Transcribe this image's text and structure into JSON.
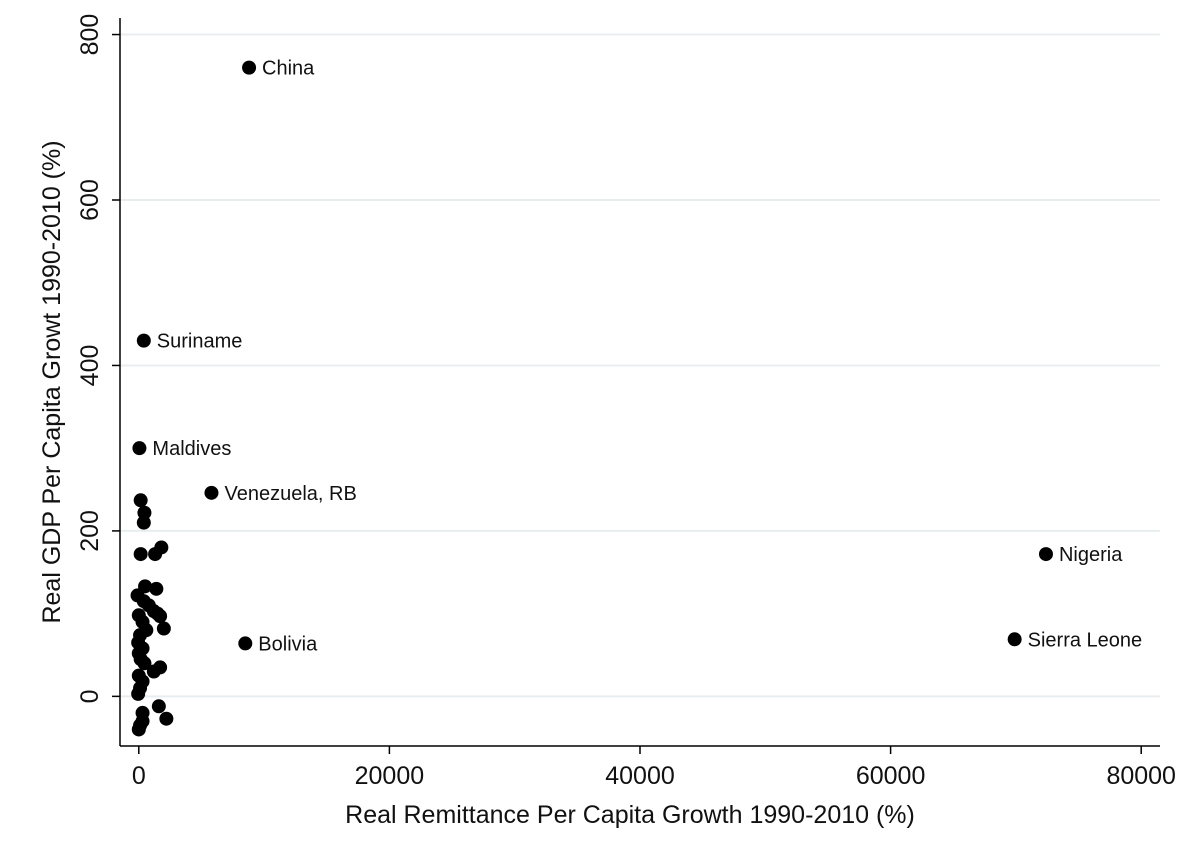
{
  "chart_data": {
    "type": "scatter",
    "title": "",
    "xlabel": "Real Remittance Per Capita Growth 1990-2010 (%)",
    "ylabel": "Real GDP Per Capita Growt 1990-2010 (%)",
    "xlim": [
      -1500,
      81500
    ],
    "ylim": [
      -60,
      820
    ],
    "xticks": [
      0,
      20000,
      40000,
      60000,
      80000
    ],
    "xtick_labels": [
      "0",
      "20000",
      "40000",
      "60000",
      "80000"
    ],
    "yticks": [
      0,
      200,
      400,
      600,
      800
    ],
    "ytick_labels": [
      "0",
      "200",
      "400",
      "600",
      "800"
    ],
    "grid": true,
    "marker_color": "#000000",
    "gridline_color": "#e8eef0",
    "points": [
      {
        "x": 8800,
        "y": 760,
        "label": "China"
      },
      {
        "x": 400,
        "y": 430,
        "label": "Suriname"
      },
      {
        "x": 50,
        "y": 300,
        "label": "Maldives"
      },
      {
        "x": 5800,
        "y": 246,
        "label": "Venezuela, RB"
      },
      {
        "x": 72400,
        "y": 172,
        "label": "Nigeria"
      },
      {
        "x": 8500,
        "y": 64,
        "label": "Bolivia"
      },
      {
        "x": 69900,
        "y": 69,
        "label": "Sierra Leone"
      },
      {
        "x": 150,
        "y": 237
      },
      {
        "x": 450,
        "y": 222
      },
      {
        "x": 400,
        "y": 210
      },
      {
        "x": 1800,
        "y": 180
      },
      {
        "x": 150,
        "y": 172
      },
      {
        "x": 1300,
        "y": 172
      },
      {
        "x": 500,
        "y": 133
      },
      {
        "x": 1400,
        "y": 130
      },
      {
        "x": -100,
        "y": 122
      },
      {
        "x": 400,
        "y": 115
      },
      {
        "x": 800,
        "y": 110
      },
      {
        "x": 1200,
        "y": 103
      },
      {
        "x": 1500,
        "y": 100
      },
      {
        "x": 1700,
        "y": 97
      },
      {
        "x": 0,
        "y": 98
      },
      {
        "x": 300,
        "y": 90
      },
      {
        "x": 2000,
        "y": 82
      },
      {
        "x": 600,
        "y": 80
      },
      {
        "x": 100,
        "y": 74
      },
      {
        "x": -50,
        "y": 65
      },
      {
        "x": 300,
        "y": 58
      },
      {
        "x": 0,
        "y": 52
      },
      {
        "x": 150,
        "y": 45
      },
      {
        "x": 450,
        "y": 40
      },
      {
        "x": 1700,
        "y": 35
      },
      {
        "x": 1200,
        "y": 30
      },
      {
        "x": 0,
        "y": 25
      },
      {
        "x": 300,
        "y": 18
      },
      {
        "x": 100,
        "y": 10
      },
      {
        "x": -50,
        "y": 3
      },
      {
        "x": 1600,
        "y": -12
      },
      {
        "x": 300,
        "y": -20
      },
      {
        "x": 2200,
        "y": -27
      },
      {
        "x": 300,
        "y": -30
      },
      {
        "x": 100,
        "y": -35
      },
      {
        "x": 0,
        "y": -40
      }
    ]
  }
}
